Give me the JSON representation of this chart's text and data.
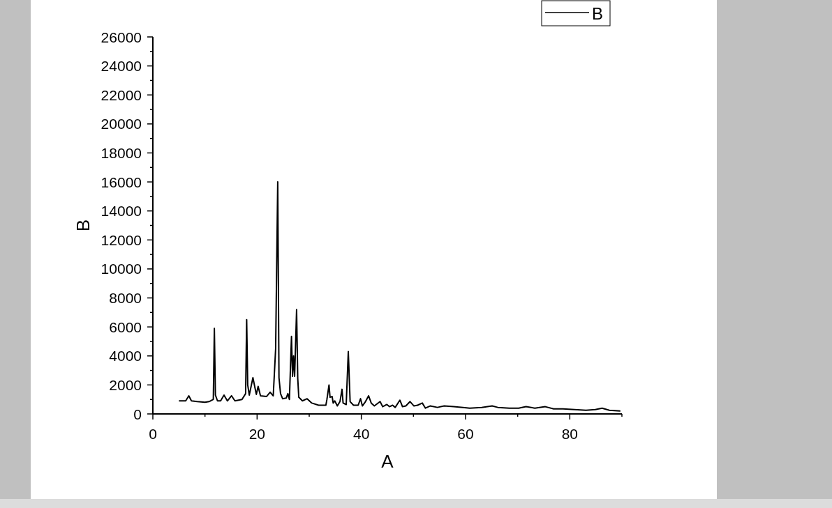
{
  "chart_data": {
    "type": "line",
    "xlabel": "A",
    "ylabel": "B",
    "legend": "top right",
    "xlim": [
      0,
      90
    ],
    "xticks": [
      0,
      {
        "value": 10,
        "label": null
      },
      20,
      {
        "value": 30,
        "label": null
      },
      40,
      {
        "value": 50,
        "label": null
      },
      60,
      {
        "value": 70,
        "label": null
      },
      80,
      {
        "value": 90,
        "label": null
      }
    ],
    "ylim": [
      0,
      26000
    ],
    "yticks": [
      0,
      {
        "value": 1000,
        "label": null
      },
      2000,
      {
        "value": 3000,
        "label": null
      },
      4000,
      {
        "value": 5000,
        "label": null
      },
      6000,
      {
        "value": 7000,
        "label": null
      },
      8000,
      {
        "value": 9000,
        "label": null
      },
      10000,
      {
        "value": 11000,
        "label": null
      },
      12000,
      {
        "value": 13000,
        "label": null
      },
      14000,
      {
        "value": 15000,
        "label": null
      },
      16000,
      {
        "value": 17000,
        "label": null
      },
      18000,
      {
        "value": 19000,
        "label": null
      },
      20000,
      {
        "value": 21000,
        "label": null
      },
      22000,
      {
        "value": 23000,
        "label": null
      },
      24000,
      {
        "value": 25000,
        "label": null
      },
      26000
    ],
    "x": [
      5.1,
      6.3,
      6.9,
      7.4,
      8.5,
      10.0,
      10.8,
      11.6,
      11.8,
      12.0,
      12.4,
      13.0,
      13.65,
      14.3,
      15.1,
      15.75,
      17.1,
      17.8,
      18.0,
      18.2,
      18.5,
      19.2,
      19.85,
      20.2,
      20.65,
      21.8,
      22.5,
      23.1,
      23.56,
      23.96,
      24.2,
      24.5,
      24.9,
      25.6,
      25.9,
      26.2,
      26.6,
      26.8,
      27.0,
      27.2,
      27.3,
      27.58,
      27.8,
      28.0,
      28.7,
      29.6,
      30.5,
      31.8,
      33.2,
      33.4,
      33.8,
      34.0,
      34.4,
      34.6,
      34.9,
      35.4,
      35.9,
      36.3,
      36.5,
      37.1,
      37.5,
      37.85,
      38.5,
      39.4,
      39.85,
      40.2,
      40.8,
      41.4,
      41.9,
      42.5,
      43.6,
      44.1,
      44.9,
      45.4,
      46.0,
      46.5,
      47.4,
      47.9,
      48.55,
      49.35,
      50.1,
      50.8,
      51.7,
      52.3,
      53.2,
      54.6,
      55.9,
      57.7,
      59.5,
      60.8,
      63.1,
      65.1,
      66.2,
      68.4,
      70.2,
      71.6,
      73.3,
      75.3,
      76.9,
      78.7,
      80.9,
      83.1,
      84.9,
      86.2,
      87.6,
      89.6
    ],
    "series": [
      {
        "name": "B",
        "color": "#000000",
        "values": [
          900,
          900,
          1250,
          900,
          850,
          800,
          850,
          1000,
          5900,
          1300,
          900,
          900,
          1300,
          900,
          1250,
          900,
          1000,
          1400,
          6500,
          2000,
          1300,
          2500,
          1350,
          1900,
          1250,
          1200,
          1500,
          1250,
          4500,
          16000,
          2500,
          1400,
          1050,
          1100,
          1400,
          1000,
          5350,
          2600,
          4000,
          2600,
          3750,
          7200,
          2450,
          1150,
          900,
          1050,
          750,
          600,
          600,
          1000,
          2000,
          1150,
          1200,
          750,
          900,
          550,
          850,
          1700,
          750,
          650,
          4300,
          850,
          600,
          600,
          1050,
          550,
          850,
          1250,
          750,
          550,
          850,
          500,
          650,
          500,
          600,
          450,
          950,
          500,
          550,
          850,
          550,
          600,
          750,
          400,
          550,
          450,
          550,
          500,
          450,
          400,
          450,
          550,
          450,
          400,
          400,
          500,
          400,
          500,
          350,
          350,
          300,
          250,
          300,
          400,
          250,
          200
        ]
      }
    ]
  }
}
